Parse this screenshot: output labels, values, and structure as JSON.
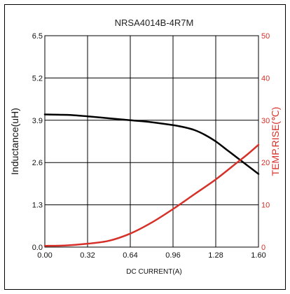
{
  "chart_data": {
    "type": "line",
    "title": "NRSA4014B-4R7M",
    "xlabel": "DC CURRENT(A)",
    "ylabel": "Inductance(uH)",
    "y2label": "TEMP.RISE(℃)",
    "xlim": [
      0,
      1.6
    ],
    "ylim": [
      0,
      6.5
    ],
    "y2lim": [
      0,
      50
    ],
    "x_ticks": [
      "0.00",
      "0.32",
      "0.64",
      "0.96",
      "1.28",
      "1.60"
    ],
    "y_ticks": [
      "0.0",
      "1.3",
      "2.6",
      "3.9",
      "5.2",
      "6.5"
    ],
    "y2_ticks": [
      "0",
      "10",
      "20",
      "30",
      "40",
      "50"
    ],
    "grid": true,
    "series": [
      {
        "axis": "left",
        "color": "#000000",
        "x": [
          0.0,
          0.1,
          0.2,
          0.32,
          0.48,
          0.64,
          0.8,
          0.96,
          1.05,
          1.12,
          1.2,
          1.28,
          1.36,
          1.44,
          1.52,
          1.6
        ],
        "values": [
          4.08,
          4.07,
          4.06,
          4.02,
          3.96,
          3.9,
          3.84,
          3.75,
          3.68,
          3.6,
          3.45,
          3.25,
          3.0,
          2.75,
          2.5,
          2.25
        ]
      },
      {
        "axis": "right",
        "color": "#d63028",
        "x": [
          0.0,
          0.16,
          0.32,
          0.48,
          0.64,
          0.8,
          0.96,
          1.12,
          1.28,
          1.44,
          1.52,
          1.6
        ],
        "values": [
          0.3,
          0.4,
          0.8,
          1.5,
          3.2,
          5.8,
          9.0,
          12.5,
          16.0,
          20.0,
          22.0,
          24.2
        ]
      }
    ]
  },
  "colors": {
    "left_axis": "#000000",
    "right_axis": "#d63028",
    "grid": "#000000"
  }
}
